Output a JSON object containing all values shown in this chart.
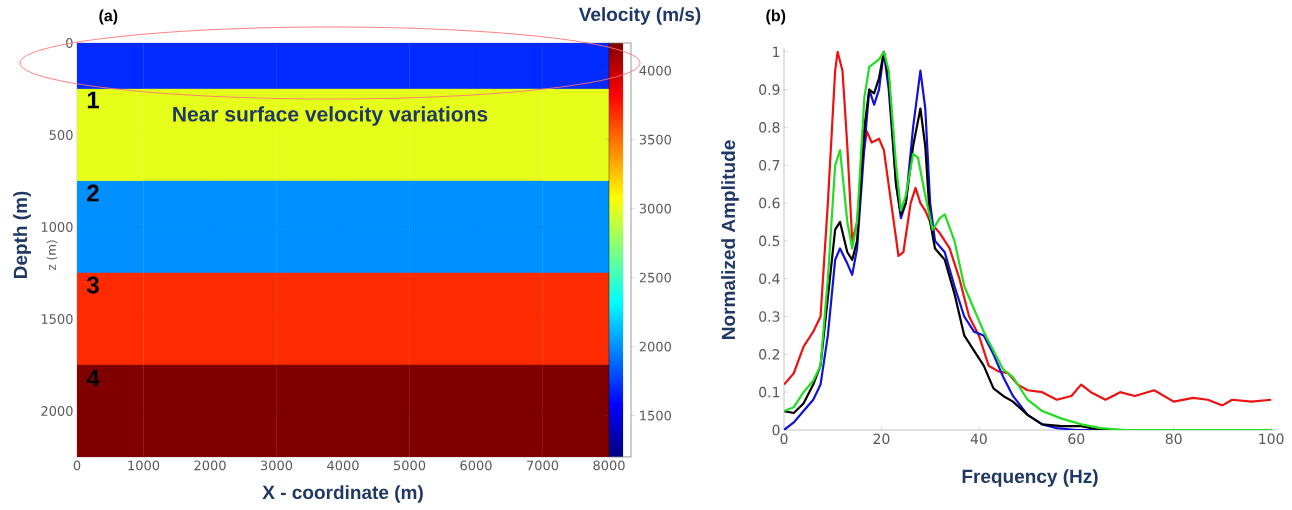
{
  "chart_data": [
    {
      "type": "heatmap",
      "title": "(a)",
      "xlabel": "X - coordinate (m)",
      "ylabel": "Depth (m)",
      "clabel": "Velocity (m/s)",
      "annotations": [
        "z (m)",
        "1",
        "2",
        "3",
        "4",
        "Near surface velocity variations"
      ],
      "x": [
        500,
        1500,
        2500,
        3500,
        4500,
        5500,
        6500,
        7500
      ],
      "cells": [
        [
          1700,
          1700,
          1700,
          1700,
          1700,
          1700,
          1700,
          1700
        ],
        [
          3000,
          3000,
          3000,
          3000,
          3000,
          3000,
          3000,
          3000
        ],
        [
          3000,
          3000,
          3000,
          3000,
          3000,
          3000,
          3000,
          3000
        ],
        [
          2000,
          2000,
          2000,
          2000,
          2000,
          2000,
          2000,
          2000
        ],
        [
          2000,
          2000,
          2000,
          2000,
          2000,
          2000,
          2000,
          2000
        ],
        [
          3700,
          3700,
          3700,
          3700,
          3700,
          3700,
          3700,
          3700
        ],
        [
          3700,
          3700,
          3700,
          3700,
          3700,
          3700,
          3700,
          3700
        ],
        [
          4200,
          4200,
          4200,
          4200,
          4200,
          4200,
          4200,
          4200
        ],
        [
          4200,
          4200,
          4200,
          4200,
          4200,
          4200,
          4200,
          4200
        ]
      ],
      "xlim": [
        0,
        8000
      ],
      "xticks": [
        0,
        1000,
        2000,
        3000,
        4000,
        5000,
        6000,
        7000,
        8000
      ],
      "ylim": [
        2250,
        0
      ],
      "yticks": [
        0,
        500,
        1000,
        1500,
        2000
      ],
      "clim": [
        1200,
        4200
      ],
      "cticks": [
        1500,
        2000,
        2500,
        3000,
        3500,
        4000
      ]
    },
    {
      "type": "line",
      "title": "(b)",
      "xlabel": "Frequency (Hz)",
      "ylabel": "Normalized Amplitude",
      "xlim": [
        0,
        101
      ],
      "xticks": [
        0,
        20,
        40,
        60,
        80,
        100
      ],
      "ylim": [
        0,
        1.01
      ],
      "yticks": [
        0,
        0.1,
        0.2,
        0.3,
        0.4,
        0.5,
        0.6,
        0.7,
        0.8,
        0.9,
        1
      ],
      "series": [
        {
          "color": "#ee1111",
          "x": [
            0,
            2,
            4,
            6,
            7.5,
            9,
            10.5,
            11,
            12,
            13,
            14,
            15,
            16,
            17,
            18,
            19.5,
            20.5,
            22,
            23.5,
            24.5,
            26,
            27,
            28,
            29,
            30,
            32,
            34,
            36,
            38,
            40,
            42,
            44,
            46,
            48,
            50,
            53,
            56,
            59,
            61,
            63,
            66,
            69,
            72,
            76,
            80,
            84,
            87,
            90,
            92,
            96,
            100
          ],
          "values": [
            0.12,
            0.15,
            0.22,
            0.26,
            0.3,
            0.6,
            0.95,
            1.0,
            0.95,
            0.75,
            0.5,
            0.55,
            0.7,
            0.79,
            0.76,
            0.77,
            0.74,
            0.6,
            0.46,
            0.47,
            0.6,
            0.64,
            0.6,
            0.58,
            0.55,
            0.52,
            0.48,
            0.4,
            0.3,
            0.25,
            0.17,
            0.155,
            0.15,
            0.12,
            0.105,
            0.1,
            0.08,
            0.09,
            0.12,
            0.1,
            0.08,
            0.1,
            0.09,
            0.105,
            0.075,
            0.085,
            0.08,
            0.065,
            0.08,
            0.075,
            0.08
          ]
        },
        {
          "color": "#1111dd",
          "x": [
            0,
            2,
            4,
            6,
            7.5,
            9,
            10.5,
            11.5,
            13,
            14,
            15,
            16.5,
            17.5,
            18.5,
            19.5,
            20.5,
            21.5,
            23,
            24,
            25,
            26.5,
            28,
            29,
            30,
            31,
            33,
            35,
            37,
            39,
            41,
            43,
            45,
            47,
            50,
            53,
            56,
            60,
            100
          ],
          "values": [
            0,
            0.02,
            0.05,
            0.08,
            0.12,
            0.25,
            0.45,
            0.48,
            0.44,
            0.41,
            0.48,
            0.75,
            0.9,
            0.86,
            0.9,
            1.0,
            0.9,
            0.65,
            0.56,
            0.6,
            0.8,
            0.95,
            0.85,
            0.6,
            0.5,
            0.47,
            0.38,
            0.3,
            0.26,
            0.25,
            0.2,
            0.14,
            0.09,
            0.04,
            0.015,
            0.005,
            0,
            0
          ]
        },
        {
          "color": "#000000",
          "x": [
            0,
            2,
            4,
            6,
            7.5,
            9,
            10.5,
            11.5,
            13,
            14,
            15,
            16.5,
            17.5,
            18.5,
            19.5,
            20.5,
            21.5,
            23,
            24,
            25,
            26.5,
            28,
            29,
            30,
            31,
            33,
            35,
            37,
            39,
            41,
            43,
            45,
            47,
            50,
            53,
            57,
            61,
            65,
            100
          ],
          "values": [
            0.05,
            0.045,
            0.07,
            0.12,
            0.17,
            0.35,
            0.53,
            0.55,
            0.47,
            0.45,
            0.5,
            0.8,
            0.9,
            0.89,
            0.93,
            1.0,
            0.93,
            0.65,
            0.57,
            0.6,
            0.75,
            0.85,
            0.75,
            0.55,
            0.48,
            0.45,
            0.36,
            0.25,
            0.21,
            0.17,
            0.11,
            0.09,
            0.075,
            0.04,
            0.015,
            0.01,
            0.01,
            0,
            0
          ]
        },
        {
          "color": "#22dd22",
          "x": [
            0,
            2,
            4,
            6,
            7.5,
            9,
            10.5,
            11.5,
            13,
            14,
            15,
            16.5,
            17.5,
            18.5,
            19.5,
            20.5,
            21.5,
            23,
            24,
            25,
            26.5,
            27.5,
            29,
            30.5,
            32,
            33,
            35,
            37,
            39,
            41,
            43,
            45,
            47,
            50,
            53,
            57,
            61,
            65,
            70,
            100
          ],
          "values": [
            0.05,
            0.06,
            0.1,
            0.13,
            0.17,
            0.4,
            0.7,
            0.74,
            0.55,
            0.48,
            0.55,
            0.88,
            0.96,
            0.97,
            0.98,
            1.0,
            0.95,
            0.7,
            0.58,
            0.62,
            0.73,
            0.72,
            0.62,
            0.53,
            0.56,
            0.57,
            0.5,
            0.38,
            0.32,
            0.26,
            0.21,
            0.16,
            0.14,
            0.08,
            0.05,
            0.03,
            0.015,
            0.005,
            0,
            0
          ]
        }
      ]
    }
  ]
}
